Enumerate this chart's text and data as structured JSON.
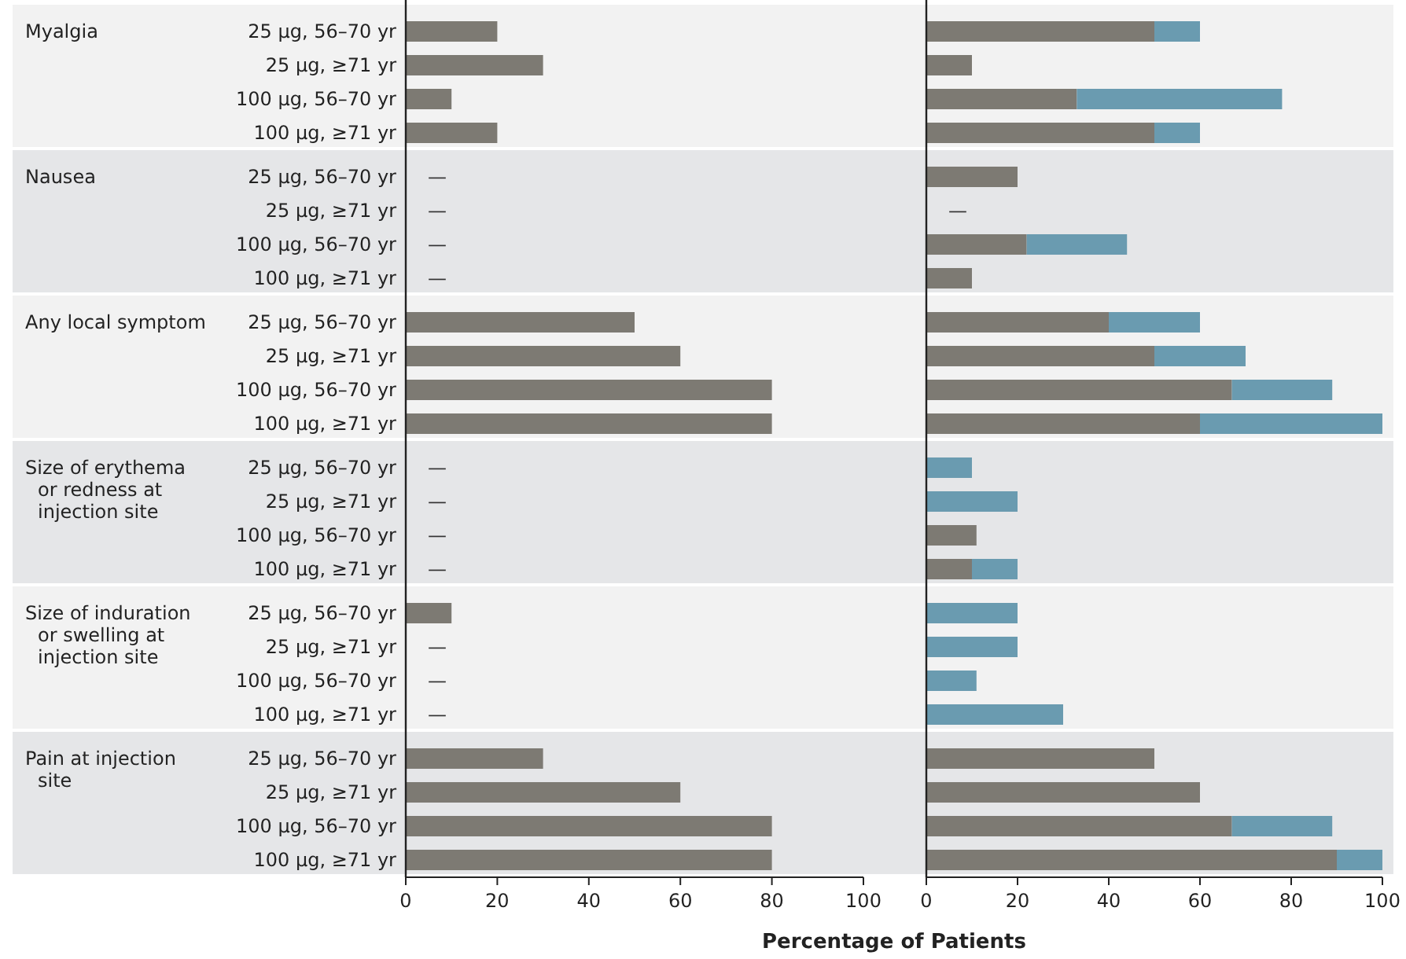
{
  "chart_data": [
    {
      "type": "bar",
      "orientation": "horizontal",
      "stacked": true,
      "categories": [
        "25 μg, 56–70 yr",
        "25 μg, ≥71 yr",
        "100 μg, 56–70 yr",
        "100 μg, ≥71 yr",
        "25 μg, 56–70 yr",
        "25 μg, ≥71 yr",
        "100 μg, 56–70 yr",
        "100 μg, ≥71 yr",
        "25 μg, 56–70 yr",
        "25 μg, ≥71 yr",
        "100 μg, 56–70 yr",
        "100 μg, ≥71 yr",
        "25 μg, 56–70 yr",
        "25 μg, ≥71 yr",
        "100 μg, 56–70 yr",
        "100 μg, ≥71 yr",
        "25 μg, 56–70 yr",
        "25 μg, ≥71 yr",
        "100 μg, 56–70 yr",
        "100 μg, ≥71 yr",
        "25 μg, 56–70 yr",
        "25 μg, ≥71 yr",
        "100 μg, 56–70 yr",
        "100 μg, ≥71 yr"
      ],
      "series": [
        {
          "color": "#7d7a73",
          "values": [
            20,
            30,
            10,
            20,
            0,
            0,
            0,
            0,
            50,
            60,
            80,
            80,
            0,
            0,
            0,
            0,
            10,
            0,
            0,
            0,
            30,
            60,
            80,
            80
          ],
          "value_labels": [
            null,
            null,
            null,
            null,
            "—",
            "—",
            "—",
            "—",
            null,
            null,
            null,
            null,
            "—",
            "—",
            "—",
            "—",
            null,
            "—",
            "—",
            "—",
            null,
            null,
            null,
            null
          ]
        },
        {
          "color": "#6a9bb0",
          "values": [
            0,
            0,
            0,
            0,
            0,
            0,
            0,
            0,
            0,
            0,
            0,
            0,
            0,
            0,
            0,
            0,
            0,
            0,
            0,
            0,
            0,
            0,
            0,
            0
          ]
        }
      ],
      "xlim": [
        0,
        100
      ],
      "xticks": [
        0,
        20,
        40,
        60,
        80,
        100
      ],
      "annotations": [
        "Myalgia",
        "Nausea",
        "Any local symptom",
        "Size of erythema or redness at injection site",
        "Size of induration or swelling at injection site",
        "Pain at injection site"
      ]
    },
    {
      "type": "bar",
      "orientation": "horizontal",
      "stacked": true,
      "tick_labels": "x",
      "categories": [
        null,
        null,
        null,
        null,
        null,
        null,
        null,
        null,
        null,
        null,
        null,
        null,
        null,
        null,
        null,
        null,
        null,
        null,
        null,
        null,
        null,
        null,
        null,
        null
      ],
      "series": [
        {
          "color": "#7d7a73",
          "values": [
            50,
            10,
            33,
            50,
            20,
            0,
            22,
            10,
            40,
            50,
            67,
            60,
            0,
            0,
            11,
            10,
            0,
            0,
            0,
            0,
            50,
            60,
            67,
            90
          ],
          "value_labels": [
            null,
            null,
            null,
            null,
            null,
            "—",
            null,
            null,
            null,
            null,
            null,
            null,
            null,
            null,
            null,
            null,
            null,
            null,
            null,
            null,
            null,
            null,
            null,
            null
          ]
        },
        {
          "color": "#6a9bb0",
          "values": [
            10,
            0,
            45,
            10,
            0,
            0,
            22,
            0,
            20,
            20,
            22,
            40,
            10,
            20,
            0,
            10,
            20,
            20,
            11,
            30,
            0,
            0,
            22,
            10
          ]
        }
      ],
      "xlim": [
        0,
        100
      ],
      "xticks": [
        0,
        20,
        40,
        60,
        80,
        100
      ],
      "xlabel": "Percentage of Patients"
    }
  ]
}
